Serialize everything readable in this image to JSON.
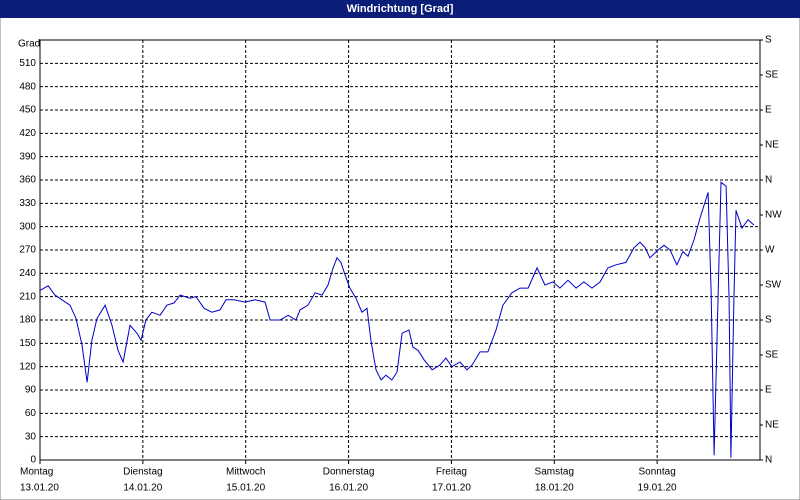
{
  "chart_data": {
    "type": "line",
    "title": "Windrichtung [Grad]",
    "ylabel": "Grad",
    "series": [
      {
        "name": "Windrichtung",
        "color": "#0000c8",
        "x": [
          0,
          1.9,
          3.5,
          5.1,
          7,
          8.4,
          9.8,
          11,
          12.1,
          13.3,
          15.2,
          16.8,
          18.2,
          19.4,
          21,
          22.6,
          23.6,
          24.7,
          26.1,
          28,
          29.6,
          31.3,
          32.7,
          35,
          36.4,
          38.3,
          40.1,
          42,
          43.4,
          45.3,
          47.8,
          50.2,
          52.5,
          53.7,
          56,
          57.9,
          59.7,
          60.7,
          62.5,
          64.2,
          65.8,
          67.2,
          68.4,
          69.3,
          70.2,
          71.2,
          72.3,
          73.7,
          75.1,
          76.3,
          77.2,
          78.4,
          79.6,
          80.7,
          82.1,
          83.3,
          84.5,
          86.1,
          87,
          88.2,
          89.6,
          91.5,
          93.3,
          94.7,
          96.1,
          98,
          99.6,
          100.8,
          102.7,
          104.5,
          106.4,
          108,
          110.1,
          112,
          113.9,
          116,
          117.8,
          119.7,
          121.3,
          123.2,
          125.1,
          126.9,
          128.8,
          130.7,
          132.5,
          134.4,
          136.7,
          138.6,
          140,
          141.2,
          142.3,
          144.2,
          145.6,
          147,
          148.6,
          150,
          151.2,
          152.6,
          154,
          155.9,
          156.6,
          157.3,
          158.2,
          158.9,
          160.1,
          160.8,
          161.2,
          161.9,
          162.4,
          163.8,
          165.2,
          166.6
        ],
        "values": [
          218,
          224,
          212,
          206,
          199,
          182,
          148,
          100,
          154,
          182,
          199,
          173,
          141,
          126,
          173,
          163,
          154,
          180,
          190,
          186,
          199,
          202,
          212,
          208,
          210,
          195,
          190,
          193,
          206,
          206,
          203,
          206,
          203,
          180,
          180,
          186,
          180,
          193,
          199,
          215,
          212,
          225,
          247,
          260,
          254,
          238,
          221,
          208,
          190,
          195,
          154,
          116,
          103,
          109,
          103,
          113,
          163,
          167,
          145,
          141,
          129,
          116,
          122,
          131,
          120,
          126,
          116,
          122,
          139,
          139,
          167,
          199,
          215,
          221,
          221,
          247,
          225,
          229,
          221,
          231,
          221,
          229,
          221,
          229,
          247,
          251,
          254,
          273,
          280,
          273,
          260,
          270,
          276,
          270,
          251,
          268,
          262,
          283,
          311,
          344,
          218,
          6,
          206,
          357,
          352,
          206,
          3,
          206,
          321,
          298,
          309,
          302
        ]
      }
    ],
    "xlim": [
      0,
      168
    ],
    "xticks": [
      {
        "value": 0,
        "label": [
          "Montag",
          "13.01.20"
        ]
      },
      {
        "value": 24,
        "label": [
          "Dienstag",
          "14.01.20"
        ]
      },
      {
        "value": 48,
        "label": [
          "Mittwoch",
          "15.01.20"
        ]
      },
      {
        "value": 72,
        "label": [
          "Donnerstag",
          "16.01.20"
        ]
      },
      {
        "value": 96,
        "label": [
          "Freitag",
          "17.01.20"
        ]
      },
      {
        "value": 120,
        "label": [
          "Samstag",
          "18.01.20"
        ]
      },
      {
        "value": 144,
        "label": [
          "Sonntag",
          "19.01.20"
        ]
      }
    ],
    "ylim": [
      0,
      540
    ],
    "yticks": [
      0,
      30,
      60,
      90,
      120,
      150,
      180,
      210,
      240,
      270,
      300,
      330,
      360,
      390,
      420,
      450,
      480,
      510
    ],
    "y2lim": [
      0,
      540
    ],
    "y2ticks": [
      {
        "value": 0,
        "label": "N"
      },
      {
        "value": 45,
        "label": "NE"
      },
      {
        "value": 90,
        "label": "E"
      },
      {
        "value": 135,
        "label": "SE"
      },
      {
        "value": 180,
        "label": "S"
      },
      {
        "value": 225,
        "label": "SW"
      },
      {
        "value": 270,
        "label": "W"
      },
      {
        "value": 315,
        "label": "NW"
      },
      {
        "value": 360,
        "label": "N"
      },
      {
        "value": 405,
        "label": "NE"
      },
      {
        "value": 450,
        "label": "E"
      },
      {
        "value": 495,
        "label": "SE"
      },
      {
        "value": 540,
        "label": "S"
      }
    ],
    "grid": true
  }
}
